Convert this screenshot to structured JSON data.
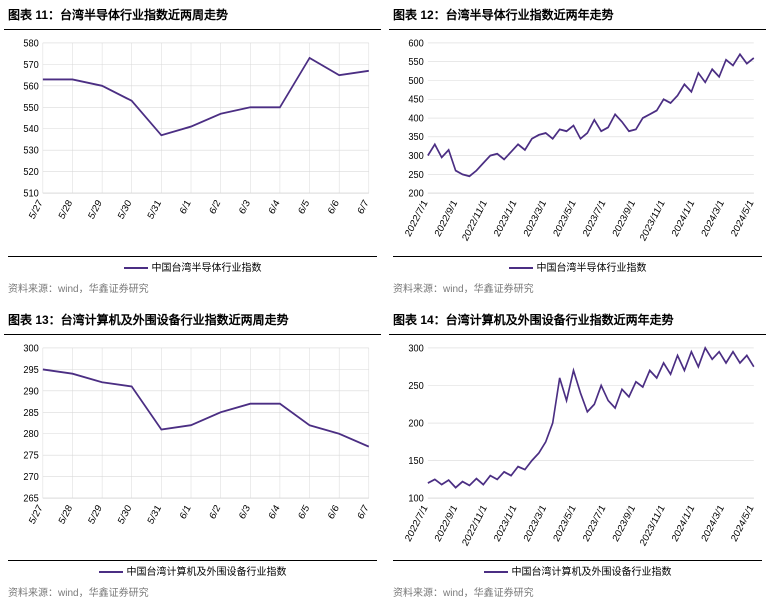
{
  "global": {
    "line_color": "#4b2e83",
    "grid_color": "#d9d9d9",
    "axis_color": "#000000",
    "background_color": "#ffffff",
    "title_color": "#000000",
    "source_color": "#7a7a7a",
    "title_fontsize": 12,
    "label_fontsize": 9,
    "legend_fontsize": 10,
    "line_width": 1.6
  },
  "panels": [
    {
      "id": "c11",
      "title": "图表 11：台湾半导体行业指数近两周走势",
      "legend": "中国台湾半导体行业指数",
      "source": "资料来源：wind，华鑫证券研究",
      "type": "line",
      "ylim": [
        510,
        580
      ],
      "ytick_step": 10,
      "x_labels": [
        "5/27",
        "5/28",
        "5/29",
        "5/30",
        "5/31",
        "6/1",
        "6/2",
        "6/3",
        "6/4",
        "6/5",
        "6/6",
        "6/7"
      ],
      "x_label_rotation": -60,
      "values": [
        563,
        563,
        560,
        553,
        537,
        541,
        547,
        550,
        550,
        573,
        565,
        567
      ]
    },
    {
      "id": "c12",
      "title": "图表 12：台湾半导体行业指数近两年走势",
      "legend": "中国台湾半导体行业指数",
      "source": "资料来源：wind，华鑫证券研究",
      "type": "line",
      "ylim": [
        200,
        600
      ],
      "ytick_step": 50,
      "x_labels": [
        "2022/7/1",
        "2022/9/1",
        "2022/11/1",
        "2023/1/1",
        "2023/3/1",
        "2023/5/1",
        "2023/7/1",
        "2023/9/1",
        "2023/11/1",
        "2024/1/1",
        "2024/3/1",
        "2024/5/1"
      ],
      "x_label_rotation": -60,
      "values": [
        300,
        330,
        295,
        315,
        260,
        250,
        245,
        260,
        280,
        300,
        305,
        290,
        310,
        330,
        315,
        345,
        355,
        360,
        345,
        370,
        365,
        380,
        345,
        360,
        395,
        365,
        375,
        410,
        390,
        365,
        370,
        400,
        410,
        420,
        450,
        440,
        460,
        490,
        470,
        520,
        495,
        530,
        510,
        555,
        540,
        570,
        545,
        560
      ]
    },
    {
      "id": "c13",
      "title": "图表 13：台湾计算机及外围设备行业指数近两周走势",
      "legend": "中国台湾计算机及外围设备行业指数",
      "source": "资料来源：wind，华鑫证券研究",
      "type": "line",
      "ylim": [
        265,
        300
      ],
      "ytick_step": 5,
      "x_labels": [
        "5/27",
        "5/28",
        "5/29",
        "5/30",
        "5/31",
        "6/1",
        "6/2",
        "6/3",
        "6/4",
        "6/5",
        "6/6",
        "6/7"
      ],
      "x_label_rotation": -60,
      "values": [
        295,
        294,
        292,
        291,
        281,
        282,
        285,
        287,
        287,
        282,
        280,
        277
      ]
    },
    {
      "id": "c14",
      "title": "图表 14：台湾计算机及外围设备行业指数近两年走势",
      "legend": "中国台湾计算机及外围设备行业指数",
      "source": "资料来源：wind，华鑫证券研究",
      "type": "line",
      "ylim": [
        100,
        300
      ],
      "ytick_step": 50,
      "x_labels": [
        "2022/7/1",
        "2022/9/1",
        "2022/11/1",
        "2023/1/1",
        "2023/3/1",
        "2023/5/1",
        "2023/7/1",
        "2023/9/1",
        "2023/11/1",
        "2024/1/1",
        "2024/3/1",
        "2024/5/1"
      ],
      "x_label_rotation": -60,
      "values": [
        120,
        125,
        118,
        124,
        114,
        122,
        117,
        126,
        118,
        130,
        125,
        135,
        130,
        142,
        138,
        150,
        160,
        175,
        200,
        260,
        230,
        270,
        240,
        215,
        225,
        250,
        230,
        220,
        245,
        235,
        255,
        248,
        270,
        260,
        280,
        265,
        290,
        270,
        295,
        275,
        300,
        285,
        295,
        280,
        295,
        280,
        290,
        275
      ]
    }
  ]
}
